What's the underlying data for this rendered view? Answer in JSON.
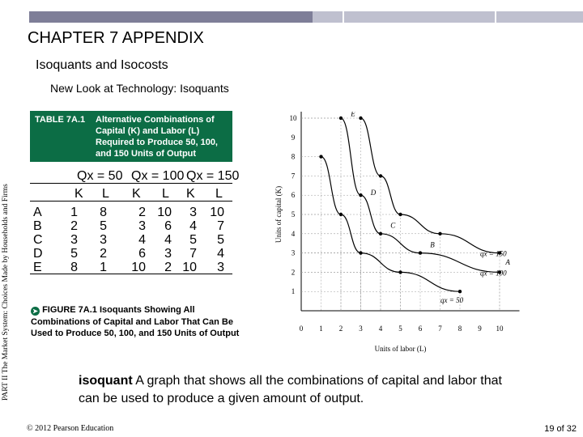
{
  "header": {
    "chapter": "CHAPTER 7 APPENDIX",
    "section": "Isoquants and Isocosts",
    "subsection": "New Look at Technology: Isoquants"
  },
  "sidebar_text": "PART II  The Market System: Choices Made by Households and Firms",
  "table": {
    "label": "TABLE 7A.1",
    "caption": "Alternative Combinations of Capital (K) and Labor (L) Required to Produce 50, 100, and 150 Units of Output",
    "groups": [
      "Qx = 50",
      "Qx = 100",
      "Qx = 150"
    ],
    "columns": [
      "K",
      "L",
      "K",
      "L",
      "K",
      "L"
    ],
    "rows": [
      {
        "label": "A",
        "values": [
          "1",
          "8",
          "2",
          "10",
          "3",
          "10"
        ]
      },
      {
        "label": "B",
        "values": [
          "2",
          "5",
          "3",
          "6",
          "4",
          "7"
        ]
      },
      {
        "label": "C",
        "values": [
          "3",
          "3",
          "4",
          "4",
          "5",
          "5"
        ]
      },
      {
        "label": "D",
        "values": [
          "5",
          "2",
          "6",
          "3",
          "7",
          "4"
        ]
      },
      {
        "label": "E",
        "values": [
          "8",
          "1",
          "10",
          "2",
          "10",
          "3"
        ]
      }
    ]
  },
  "chart_data": {
    "type": "line",
    "xlabel": "Units of labor (L)",
    "ylabel": "Units of capital (K)",
    "xlim": [
      0,
      10
    ],
    "ylim": [
      0,
      10
    ],
    "x_ticks": [
      "0",
      "1",
      "2",
      "3",
      "4",
      "5",
      "6",
      "7",
      "8",
      "9",
      "10"
    ],
    "y_ticks": [
      "1",
      "2",
      "3",
      "4",
      "5",
      "6",
      "7",
      "8",
      "9",
      "10"
    ],
    "series": [
      {
        "name": "qx = 50",
        "points": [
          [
            1,
            8
          ],
          [
            2,
            5
          ],
          [
            3,
            3
          ],
          [
            5,
            2
          ],
          [
            8,
            1
          ]
        ]
      },
      {
        "name": "qx = 100",
        "points": [
          [
            2,
            10
          ],
          [
            3,
            6
          ],
          [
            4,
            4
          ],
          [
            6,
            3
          ],
          [
            10,
            2
          ]
        ]
      },
      {
        "name": "qx = 150",
        "points": [
          [
            3,
            10
          ],
          [
            4,
            7
          ],
          [
            5,
            5
          ],
          [
            7,
            4
          ],
          [
            10,
            3
          ]
        ]
      }
    ],
    "point_labels": [
      {
        "text": "E",
        "x": 2.5,
        "y": 10.1
      },
      {
        "text": "D",
        "x": 3.5,
        "y": 6.0
      },
      {
        "text": "C",
        "x": 4.5,
        "y": 4.3
      },
      {
        "text": "B",
        "x": 6.5,
        "y": 3.3
      },
      {
        "text": "A",
        "x": 10.3,
        "y": 2.4
      }
    ]
  },
  "figure": {
    "icon": "circled-arrow-icon",
    "caption": "FIGURE 7A.1  Isoquants Showing All Combinations of Capital and Labor That Can Be Used to Produce 50, 100, and 150 Units of Output"
  },
  "definition": {
    "term": "isoquant",
    "text": "A graph that shows all the combinations of capital and labor that can be used to produce a given amount of output."
  },
  "footer": {
    "copyright": "© 2012 Pearson Education",
    "page": "19 of 32"
  }
}
